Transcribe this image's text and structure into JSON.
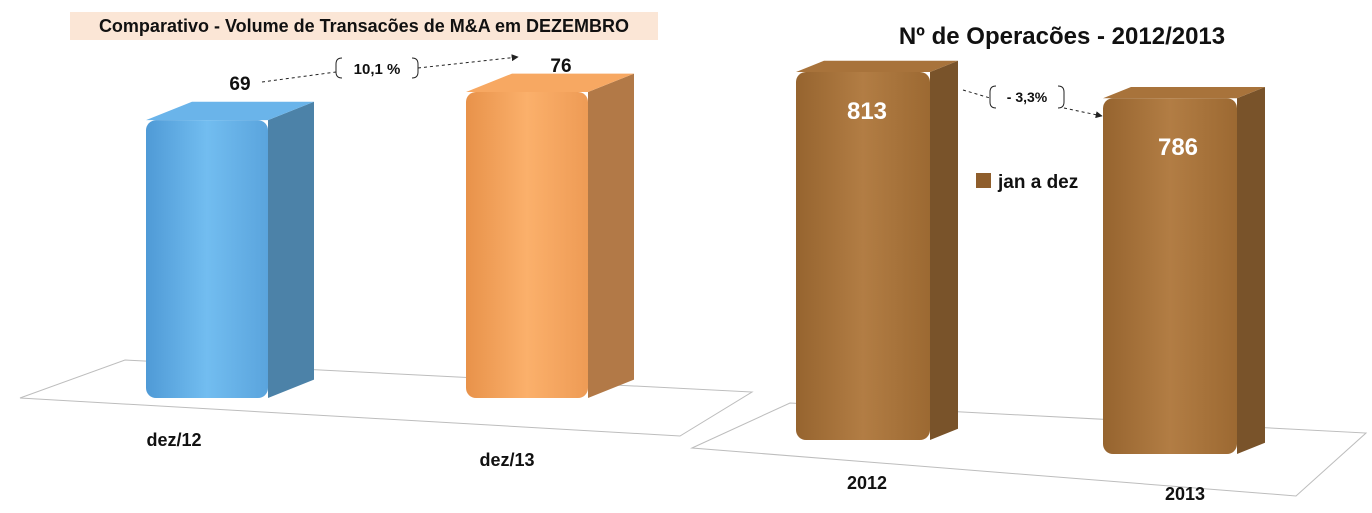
{
  "chart_data": [
    {
      "type": "bar",
      "title": "Comparativo - Volume de Transacões de M&A em DEZEMBRO",
      "categories": [
        "dez/12",
        "dez/13"
      ],
      "values": [
        69,
        76
      ],
      "value_labels": [
        "69",
        "76"
      ],
      "colors": [
        "#6ab4ea",
        "#f7a862"
      ],
      "annotation": "10,1 %",
      "grid": false
    },
    {
      "type": "bar",
      "title": "Nº de Operacões  - 2012/2013",
      "categories": [
        "2012",
        "2013"
      ],
      "series": [
        {
          "name": "jan a dez",
          "values": [
            813,
            786
          ]
        }
      ],
      "value_labels": [
        "813",
        "786"
      ],
      "colors": [
        "#a8733b"
      ],
      "annotation": "- 3,3%",
      "legend": "right",
      "grid": false
    }
  ]
}
